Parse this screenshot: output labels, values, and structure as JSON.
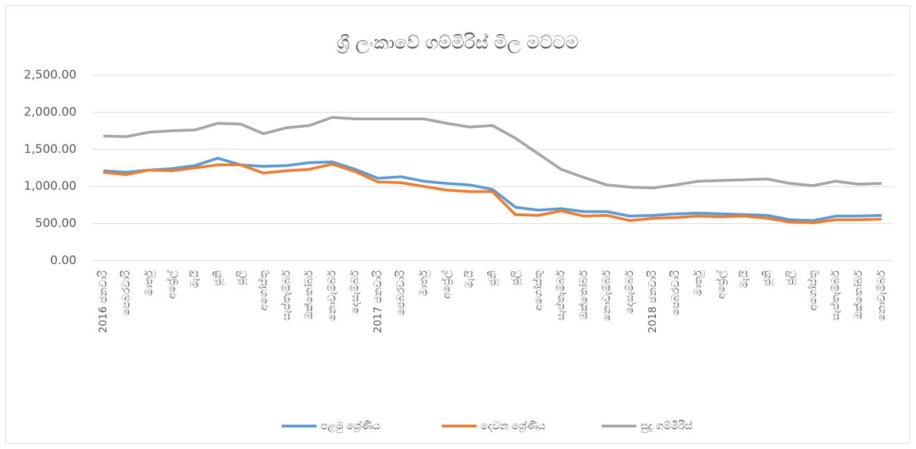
{
  "chart_data": {
    "type": "line",
    "title": "ශ්‍රී ලංකාවේ ගම්මිරිස් මිල මට්ටම",
    "categories": [
      "2016 ජනවාරි",
      "පෙබරවාරි",
      "මාර්තු",
      "අප්‍රේල්",
      "මැයි",
      "ජූනි",
      "ජූලි",
      "අගෝස්තු",
      "සැප්තැම්බර්",
      "ඔක්තෝබර්",
      "නොවැම්බර්",
      "දෙසැම්බර්",
      "2017 ජනවාරි",
      "පෙබරවාරි",
      "මාර්තු",
      "අප්‍රේල්",
      "මැයි",
      "ජූනි",
      "ජූලි",
      "අගෝස්තු",
      "සැප්තැම්බර්",
      "ඔක්තෝබර්",
      "නොවැම්බර්",
      "දෙසැම්බර්",
      "2018 ජනවාරි",
      "පෙබරවාරි",
      "මාර්තු",
      "අප්‍රේල්",
      "මැයි",
      "ජූනි",
      "ජූලි",
      "අගෝස්තු",
      "සැප්තැම්බර්",
      "ඔක්තෝබර්",
      "නොවැම්බර්"
    ],
    "series": [
      {
        "name": "පළමු ශ්‍රේණිය",
        "color": "#5b9bd5",
        "values": [
          1210,
          1190,
          1220,
          1240,
          1280,
          1380,
          1290,
          1270,
          1280,
          1320,
          1330,
          1230,
          1110,
          1130,
          1070,
          1040,
          1020,
          960,
          720,
          680,
          700,
          660,
          660,
          600,
          610,
          630,
          640,
          630,
          620,
          610,
          550,
          540,
          600,
          600,
          610
        ]
      },
      {
        "name": "දෙවන ශ්‍රේණිය",
        "color": "#ed7d31",
        "values": [
          1190,
          1160,
          1220,
          1210,
          1250,
          1290,
          1290,
          1180,
          1210,
          1230,
          1300,
          1200,
          1060,
          1050,
          1000,
          950,
          930,
          930,
          620,
          610,
          670,
          600,
          610,
          540,
          570,
          580,
          600,
          590,
          600,
          570,
          520,
          510,
          550,
          550,
          560
        ]
      },
      {
        "name": "සුදු ගම්මිරිස්",
        "color": "#a5a5a5",
        "values": [
          1680,
          1670,
          1730,
          1750,
          1760,
          1850,
          1840,
          1710,
          1790,
          1820,
          1930,
          1910,
          1910,
          1910,
          1910,
          1850,
          1800,
          1820,
          1650,
          1440,
          1230,
          1120,
          1020,
          990,
          980,
          1020,
          1070,
          1080,
          1090,
          1100,
          1040,
          1010,
          1070,
          1030,
          1040
        ]
      }
    ],
    "ylim": [
      0,
      2500
    ],
    "yticks": [
      {
        "value": 0,
        "label": "0.00"
      },
      {
        "value": 500,
        "label": "500.00"
      },
      {
        "value": 1000,
        "label": "1,000.00"
      },
      {
        "value": 1500,
        "label": "1,500.00"
      },
      {
        "value": 2000,
        "label": "2,000.00"
      },
      {
        "value": 2500,
        "label": "2,500.00"
      }
    ],
    "grid": true,
    "legend": "bottom"
  }
}
